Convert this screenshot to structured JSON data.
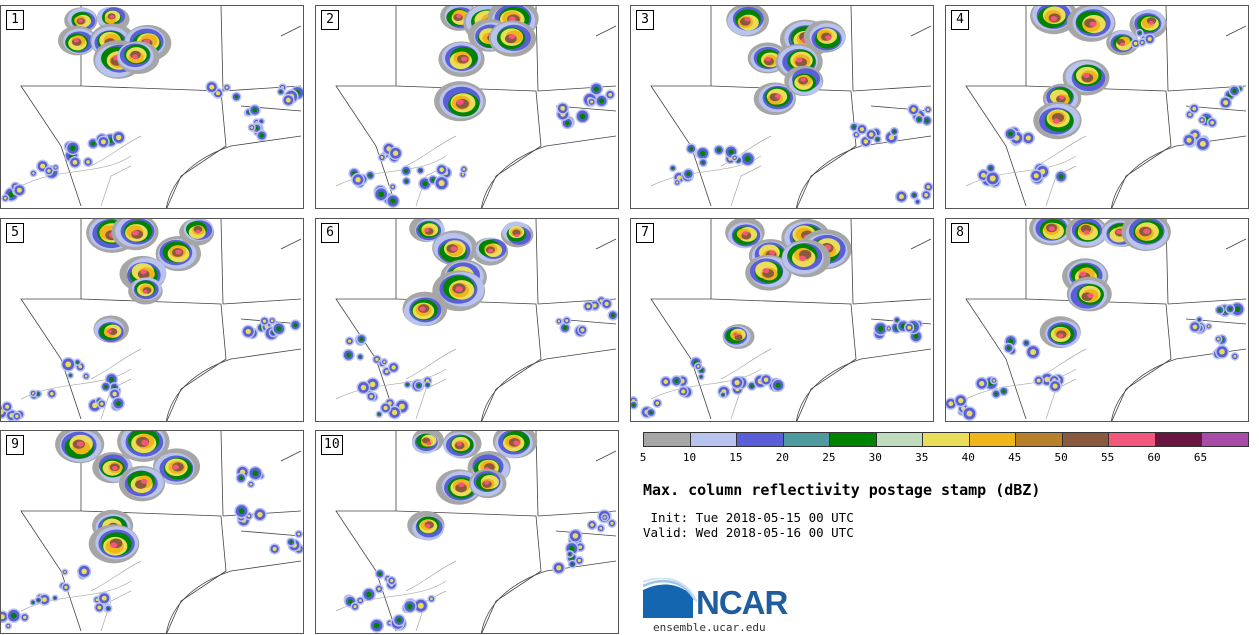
{
  "panels": [
    {
      "label": "1",
      "cells": [
        [
          2,
          0
        ],
        [
          3,
          0
        ],
        [
          2,
          1
        ],
        [
          3,
          1
        ],
        [
          4,
          1
        ],
        [
          3,
          2
        ],
        [
          4,
          2
        ]
      ],
      "scatter": [
        [
          1,
          8
        ],
        [
          2,
          7
        ],
        [
          3,
          6
        ],
        [
          0,
          9
        ],
        [
          7,
          4
        ],
        [
          8,
          5
        ],
        [
          9,
          4
        ],
        [
          8,
          6
        ]
      ]
    },
    {
      "label": "2",
      "cells": [
        [
          4,
          0
        ],
        [
          5,
          0
        ],
        [
          6,
          0
        ],
        [
          5,
          1
        ],
        [
          6,
          1
        ],
        [
          4,
          2
        ],
        [
          4,
          4
        ]
      ],
      "scatter": [
        [
          1,
          8
        ],
        [
          2,
          7
        ],
        [
          3,
          8
        ],
        [
          4,
          8
        ],
        [
          8,
          5
        ],
        [
          9,
          4
        ],
        [
          2,
          9
        ]
      ]
    },
    {
      "label": "3",
      "cells": [
        [
          3,
          0
        ],
        [
          5,
          1
        ],
        [
          6,
          1
        ],
        [
          4,
          2
        ],
        [
          5,
          2
        ],
        [
          4,
          4
        ],
        [
          5,
          3
        ]
      ],
      "scatter": [
        [
          1,
          8
        ],
        [
          2,
          7
        ],
        [
          3,
          7
        ],
        [
          7,
          6
        ],
        [
          9,
          5
        ],
        [
          8,
          6
        ],
        [
          9,
          9
        ]
      ]
    },
    {
      "label": "4",
      "cells": [
        [
          3,
          0
        ],
        [
          4,
          0
        ],
        [
          5,
          1
        ],
        [
          6,
          0
        ],
        [
          4,
          3
        ],
        [
          3,
          4
        ],
        [
          3,
          5
        ]
      ],
      "scatter": [
        [
          1,
          8
        ],
        [
          2,
          6
        ],
        [
          3,
          8
        ],
        [
          8,
          5
        ],
        [
          9,
          4
        ],
        [
          8,
          6
        ],
        [
          6,
          1
        ]
      ]
    },
    {
      "label": "5",
      "cells": [
        [
          3,
          0
        ],
        [
          4,
          0
        ],
        [
          5,
          1
        ],
        [
          6,
          0
        ],
        [
          4,
          2
        ],
        [
          4,
          3
        ],
        [
          3,
          5
        ]
      ],
      "scatter": [
        [
          1,
          8
        ],
        [
          2,
          7
        ],
        [
          3,
          8
        ],
        [
          8,
          5
        ],
        [
          9,
          5
        ],
        [
          3,
          9
        ],
        [
          0,
          9
        ]
      ]
    },
    {
      "label": "6",
      "cells": [
        [
          3,
          0
        ],
        [
          4,
          1
        ],
        [
          5,
          1
        ],
        [
          6,
          0
        ],
        [
          4,
          2
        ],
        [
          4,
          3
        ],
        [
          3,
          4
        ]
      ],
      "scatter": [
        [
          1,
          8
        ],
        [
          2,
          7
        ],
        [
          3,
          8
        ],
        [
          8,
          5
        ],
        [
          9,
          4
        ],
        [
          2,
          9
        ],
        [
          1,
          6
        ]
      ]
    },
    {
      "label": "7",
      "cells": [
        [
          3,
          0
        ],
        [
          4,
          1
        ],
        [
          5,
          0
        ],
        [
          6,
          1
        ],
        [
          4,
          2
        ],
        [
          5,
          1
        ],
        [
          3,
          5
        ]
      ],
      "scatter": [
        [
          1,
          8
        ],
        [
          2,
          7
        ],
        [
          3,
          8
        ],
        [
          8,
          5
        ],
        [
          9,
          5
        ],
        [
          0,
          9
        ],
        [
          4,
          8
        ]
      ]
    },
    {
      "label": "8",
      "cells": [
        [
          3,
          0
        ],
        [
          4,
          0
        ],
        [
          5,
          0
        ],
        [
          6,
          0
        ],
        [
          4,
          2
        ],
        [
          4,
          3
        ],
        [
          3,
          5
        ]
      ],
      "scatter": [
        [
          1,
          8
        ],
        [
          2,
          6
        ],
        [
          3,
          8
        ],
        [
          8,
          5
        ],
        [
          9,
          4
        ],
        [
          9,
          6
        ],
        [
          0,
          9
        ]
      ]
    },
    {
      "label": "9",
      "cells": [
        [
          2,
          0
        ],
        [
          3,
          1
        ],
        [
          4,
          0
        ],
        [
          5,
          1
        ],
        [
          4,
          2
        ],
        [
          3,
          4
        ],
        [
          3,
          5
        ]
      ],
      "scatter": [
        [
          1,
          8
        ],
        [
          2,
          7
        ],
        [
          3,
          8
        ],
        [
          8,
          4
        ],
        [
          9,
          5
        ],
        [
          0,
          9
        ],
        [
          8,
          2
        ]
      ]
    },
    {
      "label": "10",
      "cells": [
        [
          3,
          0
        ],
        [
          4,
          0
        ],
        [
          5,
          1
        ],
        [
          6,
          0
        ],
        [
          4,
          2
        ],
        [
          3,
          4
        ],
        [
          5,
          2
        ]
      ],
      "scatter": [
        [
          1,
          8
        ],
        [
          2,
          7
        ],
        [
          3,
          8
        ],
        [
          8,
          5
        ],
        [
          9,
          4
        ],
        [
          2,
          9
        ],
        [
          8,
          6
        ]
      ]
    }
  ],
  "legend": {
    "colors": [
      "#a6a6a6",
      "#b8c4ee",
      "#5a5fd7",
      "#4f9a9e",
      "#008400",
      "#bfdcbf",
      "#eadd5a",
      "#f0b51b",
      "#b8802a",
      "#8b5a3e",
      "#f3587c",
      "#6a1640",
      "#a94ba8"
    ],
    "ticks": [
      "5",
      "10",
      "15",
      "20",
      "25",
      "30",
      "35",
      "40",
      "45",
      "50",
      "55",
      "60",
      "65"
    ]
  },
  "title": "Max. column reflectivity postage stamp (dBZ)",
  "init": " Init: Tue 2018-05-15 00 UTC",
  "valid": "Valid: Wed 2018-05-16 00 UTC",
  "logo": {
    "text": "NCAR",
    "url": "ensemble.ucar.edu",
    "color": "#1f5d9e"
  }
}
